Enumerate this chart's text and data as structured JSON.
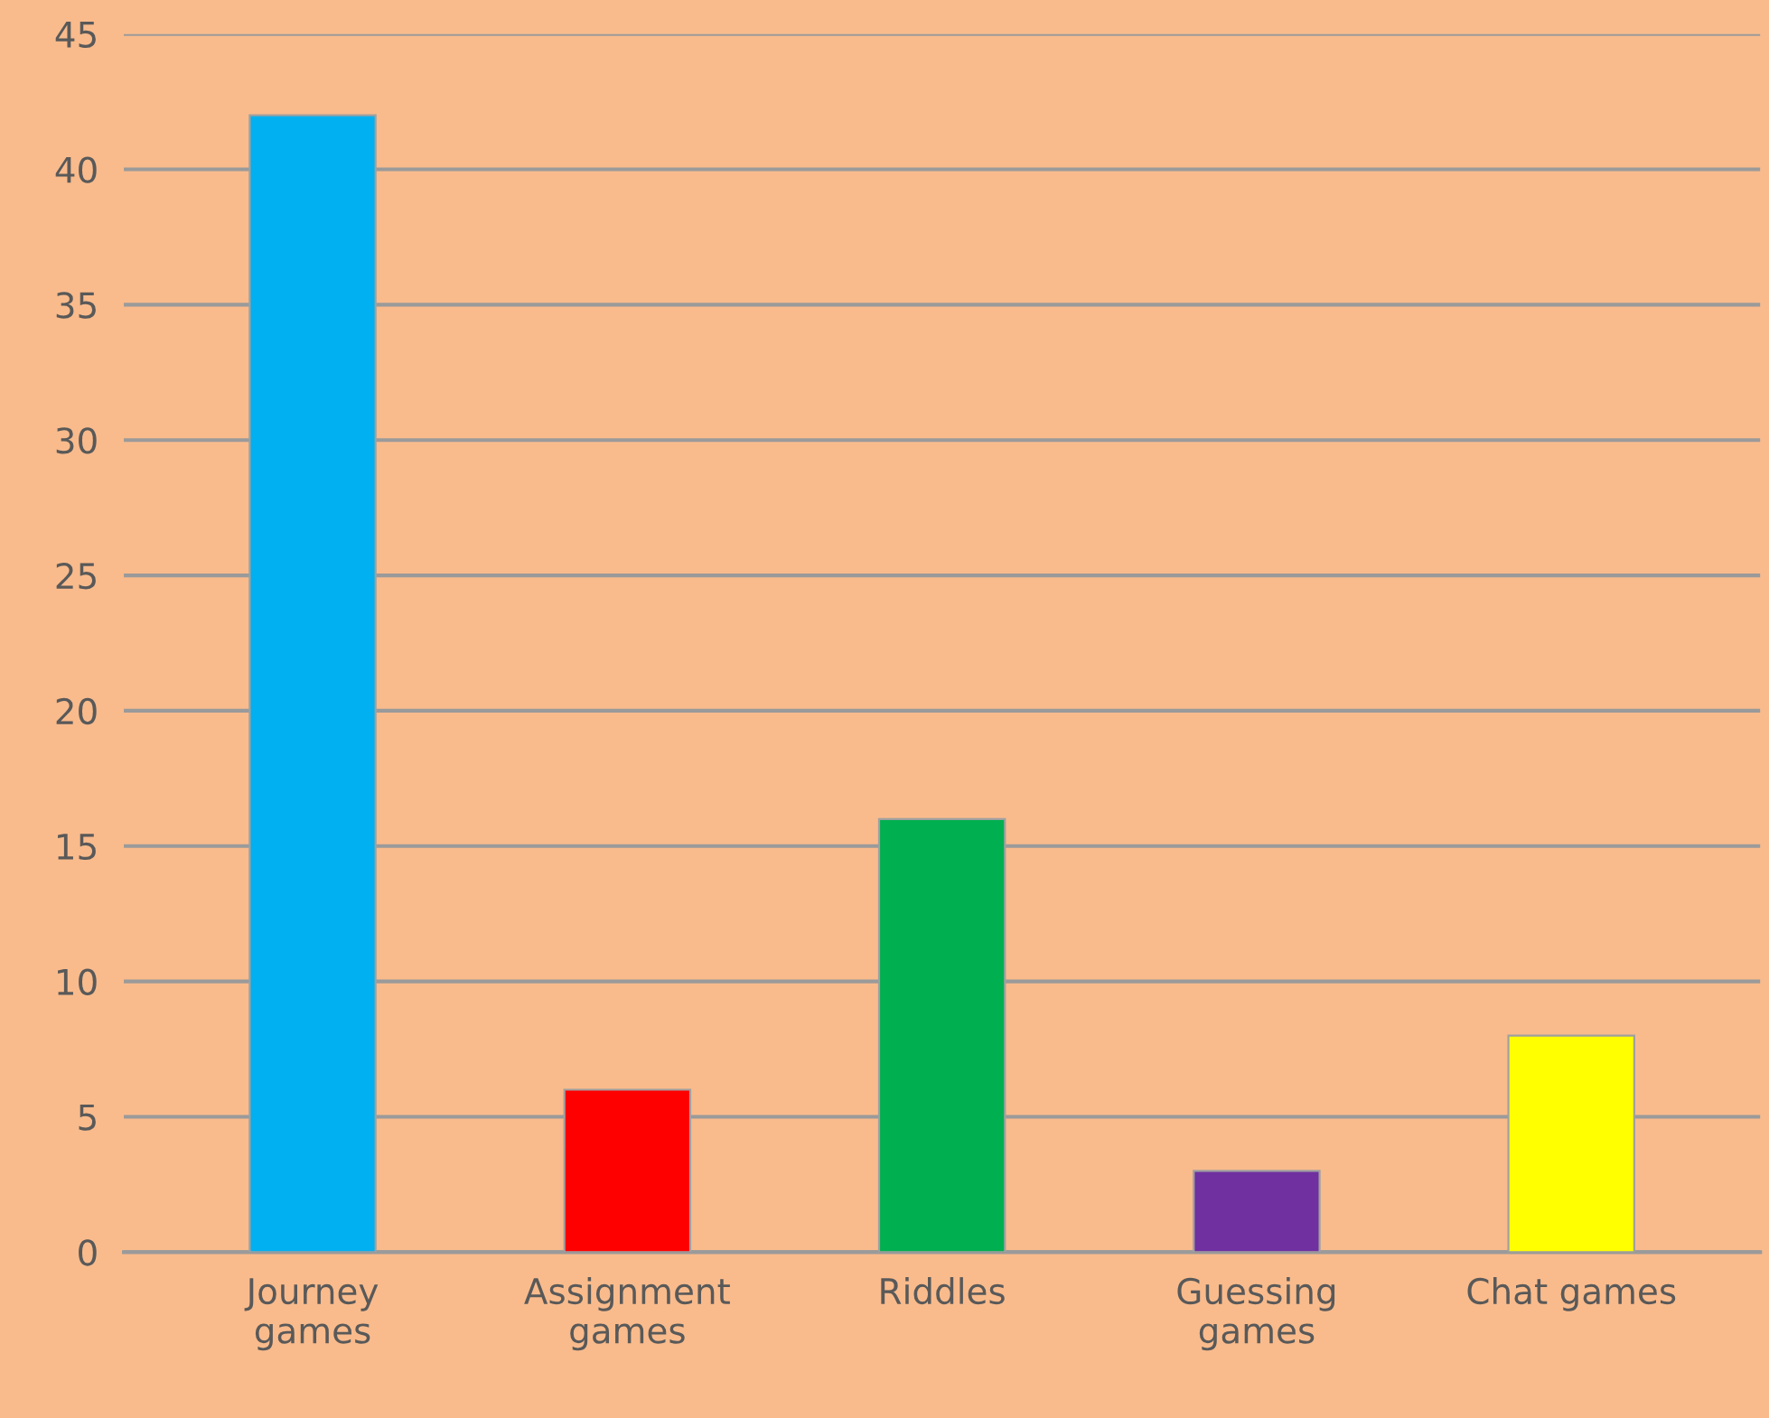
{
  "chart_data": {
    "type": "bar",
    "categories": [
      "Journey games",
      "Assignment games",
      "Riddles",
      "Guessing games",
      "Chat games"
    ],
    "values": [
      42,
      6,
      16,
      3,
      8
    ],
    "colors": [
      "#00b0f0",
      "#ff0000",
      "#00b050",
      "#7030a0",
      "#ffff00"
    ],
    "ylim": [
      0,
      45
    ],
    "yticks": [
      0,
      5,
      10,
      15,
      20,
      25,
      30,
      35,
      40,
      45
    ],
    "grid": "y",
    "legend": false
  }
}
